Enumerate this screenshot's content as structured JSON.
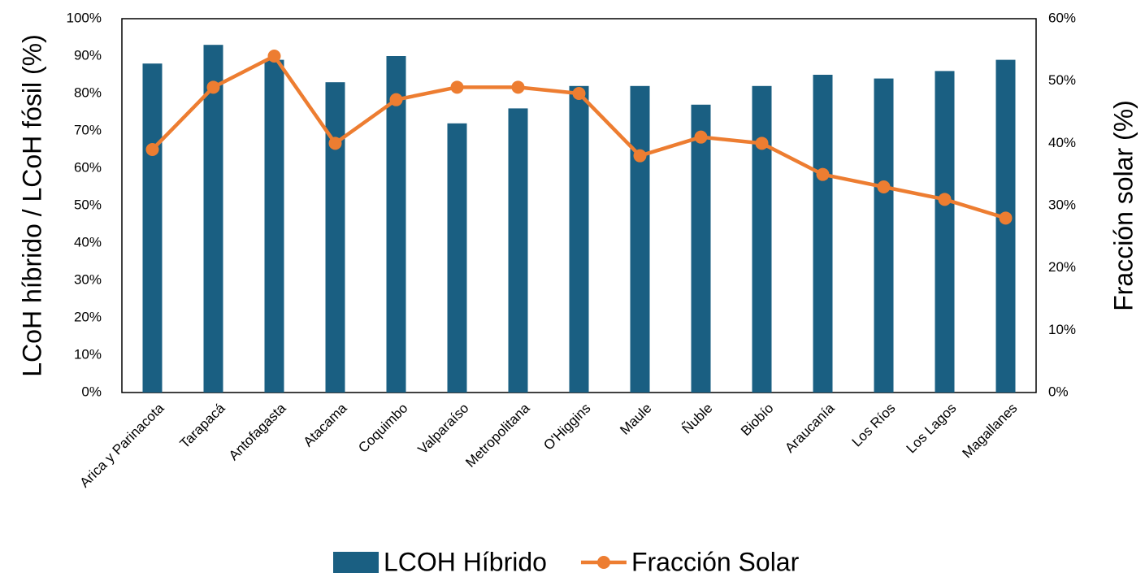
{
  "chart_data": {
    "type": "bar",
    "categories": [
      "Arica y Parinacota",
      "Tarapacá",
      "Antofagasta",
      "Atacama",
      "Coquimbo",
      "Valparaíso",
      "Metropolitana",
      "O'Higgins",
      "Maule",
      "Ñuble",
      "Biobío",
      "Araucanía",
      "Los Ríos",
      "Los Lagos",
      "Magallanes"
    ],
    "series": [
      {
        "name": "LCOH Híbrido",
        "type": "bar",
        "color": "#1a5f82",
        "values": [
          88,
          93,
          89,
          83,
          90,
          72,
          76,
          82,
          82,
          77,
          82,
          85,
          84,
          86,
          89
        ]
      },
      {
        "name": "Fracción Solar",
        "type": "line",
        "axis": "y2",
        "color": "#ed7d31",
        "values": [
          39,
          49,
          54,
          40,
          47,
          49,
          49,
          48,
          38,
          41,
          40,
          35,
          33,
          31,
          28
        ]
      }
    ],
    "ylabel": "LCoH híbrido / LCoH fósil (%)",
    "y2label": "Fracción solar (%)",
    "ylim": [
      0,
      100
    ],
    "yticks": [
      {
        "value": 0,
        "label": "0%"
      },
      {
        "value": 10,
        "label": "10%"
      },
      {
        "value": 20,
        "label": "20%"
      },
      {
        "value": 30,
        "label": "30%"
      },
      {
        "value": 40,
        "label": "40%"
      },
      {
        "value": 50,
        "label": "50%"
      },
      {
        "value": 60,
        "label": "60%"
      },
      {
        "value": 70,
        "label": "70%"
      },
      {
        "value": 80,
        "label": "80%"
      },
      {
        "value": 90,
        "label": "90%"
      },
      {
        "value": 100,
        "label": "100%"
      }
    ],
    "y2lim": [
      0,
      60
    ],
    "y2ticks": [
      {
        "value": 0,
        "label": "0%"
      },
      {
        "value": 10,
        "label": "10%"
      },
      {
        "value": 20,
        "label": "20%"
      },
      {
        "value": 30,
        "label": "30%"
      },
      {
        "value": 40,
        "label": "40%"
      },
      {
        "value": 50,
        "label": "50%"
      },
      {
        "value": 60,
        "label": "60%"
      }
    ],
    "legend": "bottom"
  }
}
